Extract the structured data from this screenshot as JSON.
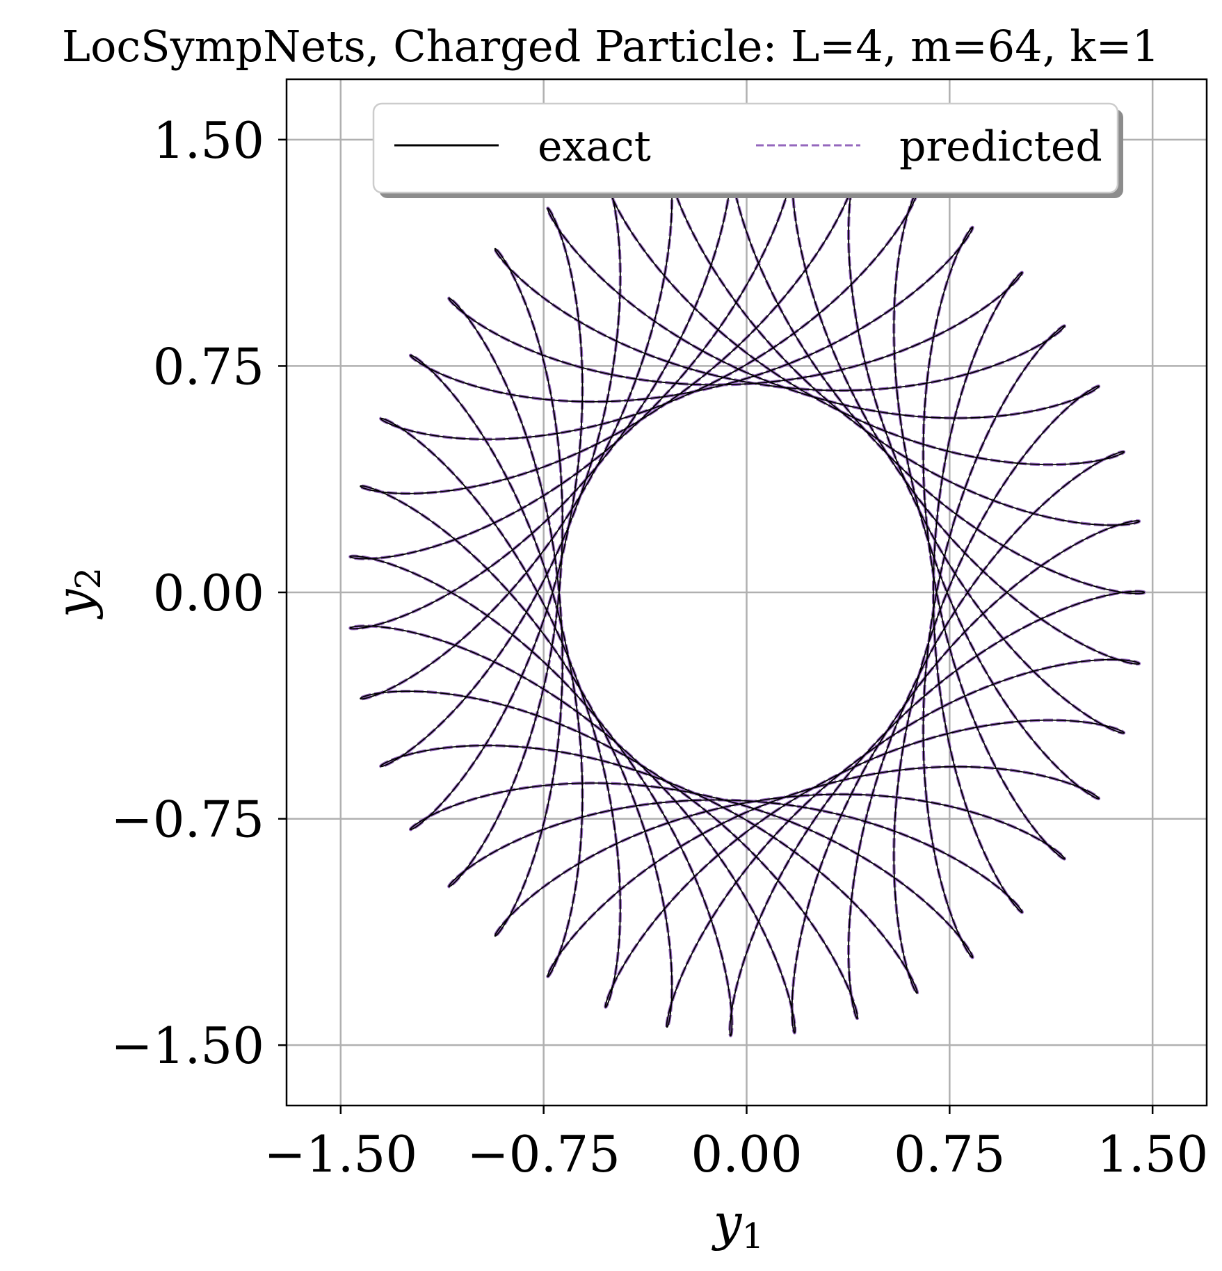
{
  "chart_data": {
    "type": "line",
    "title": "LocSympNets, Charged Particle: L=4, m=64, k=1",
    "xlabel": "y",
    "xlabel_sub": "1",
    "ylabel": "y",
    "ylabel_sub": "2",
    "xlim": [
      -1.7,
      1.7
    ],
    "ylim": [
      -1.7,
      1.7
    ],
    "xticks": [
      -1.5,
      -0.75,
      0.0,
      0.75,
      1.5
    ],
    "yticks": [
      -1.5,
      -0.75,
      0.0,
      0.75,
      1.5
    ],
    "xtick_labels": [
      "−1.50",
      "−0.75",
      "0.00",
      "0.75",
      "1.50"
    ],
    "ytick_labels": [
      "−1.50",
      "−0.75",
      "0.00",
      "0.75",
      "1.50"
    ],
    "grid": true,
    "legend": {
      "placement": "top-center",
      "columns": 2
    },
    "series": [
      {
        "name": "exact",
        "color": "#000000",
        "style": "solid",
        "curve": "rosette",
        "outer_radius": 1.47,
        "inner_radius": 0.69
      },
      {
        "name": "predicted",
        "color": "#9467bd",
        "style": "dashed",
        "curve": "rosette",
        "outer_radius": 1.47,
        "inner_radius": 0.69
      }
    ]
  }
}
